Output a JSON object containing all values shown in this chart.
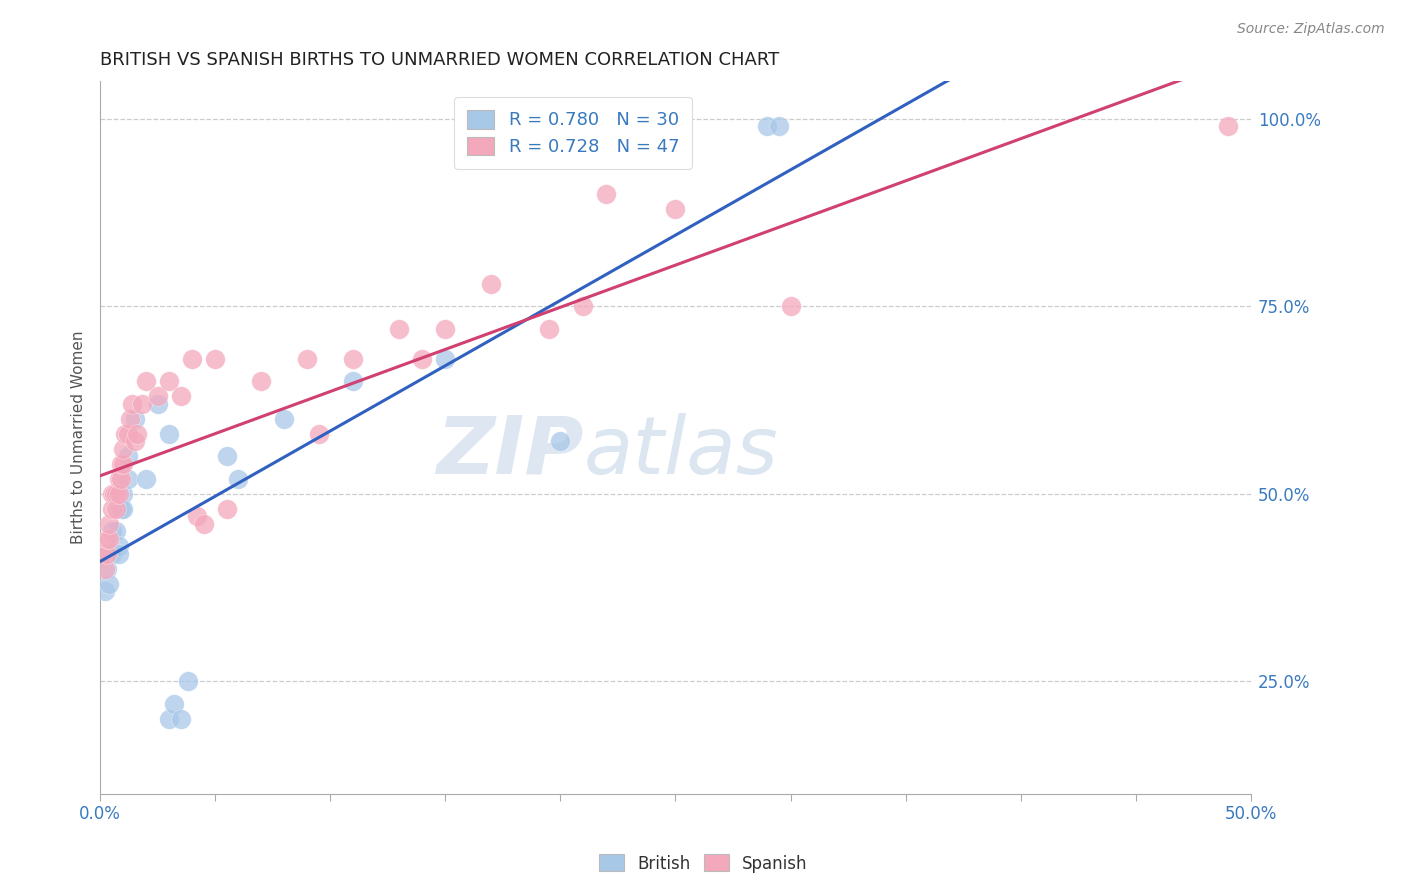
{
  "title": "BRITISH VS SPANISH BIRTHS TO UNMARRIED WOMEN CORRELATION CHART",
  "source": "Source: ZipAtlas.com",
  "ylabel": "Births to Unmarried Women",
  "british_R": 0.78,
  "british_N": 30,
  "spanish_R": 0.728,
  "spanish_N": 47,
  "british_color": "#a8c8e8",
  "spanish_color": "#f4a8bc",
  "british_line_color": "#3060c0",
  "spanish_line_color": "#d04070",
  "watermark_zip": "ZIP",
  "watermark_atlas": "atlas",
  "xlim": [
    0.0,
    0.5
  ],
  "ylim": [
    0.1,
    1.05
  ],
  "british_dots": [
    [
      0.002,
      0.37
    ],
    [
      0.003,
      0.4
    ],
    [
      0.003,
      0.42
    ],
    [
      0.004,
      0.38
    ],
    [
      0.005,
      0.42
    ],
    [
      0.005,
      0.45
    ],
    [
      0.007,
      0.45
    ],
    [
      0.008,
      0.43
    ],
    [
      0.008,
      0.42
    ],
    [
      0.009,
      0.48
    ],
    [
      0.01,
      0.5
    ],
    [
      0.01,
      0.48
    ],
    [
      0.012,
      0.55
    ],
    [
      0.012,
      0.52
    ],
    [
      0.015,
      0.6
    ],
    [
      0.02,
      0.52
    ],
    [
      0.025,
      0.62
    ],
    [
      0.03,
      0.58
    ],
    [
      0.03,
      0.2
    ],
    [
      0.032,
      0.22
    ],
    [
      0.035,
      0.2
    ],
    [
      0.038,
      0.25
    ],
    [
      0.055,
      0.55
    ],
    [
      0.06,
      0.52
    ],
    [
      0.08,
      0.6
    ],
    [
      0.11,
      0.65
    ],
    [
      0.15,
      0.68
    ],
    [
      0.2,
      0.57
    ],
    [
      0.29,
      0.99
    ],
    [
      0.295,
      0.99
    ]
  ],
  "spanish_dots": [
    [
      0.001,
      0.42
    ],
    [
      0.002,
      0.4
    ],
    [
      0.003,
      0.42
    ],
    [
      0.003,
      0.44
    ],
    [
      0.004,
      0.44
    ],
    [
      0.004,
      0.46
    ],
    [
      0.005,
      0.5
    ],
    [
      0.005,
      0.48
    ],
    [
      0.006,
      0.5
    ],
    [
      0.007,
      0.5
    ],
    [
      0.007,
      0.48
    ],
    [
      0.008,
      0.52
    ],
    [
      0.008,
      0.5
    ],
    [
      0.009,
      0.52
    ],
    [
      0.009,
      0.54
    ],
    [
      0.01,
      0.54
    ],
    [
      0.01,
      0.56
    ],
    [
      0.011,
      0.58
    ],
    [
      0.012,
      0.58
    ],
    [
      0.013,
      0.6
    ],
    [
      0.014,
      0.62
    ],
    [
      0.015,
      0.57
    ],
    [
      0.016,
      0.58
    ],
    [
      0.018,
      0.62
    ],
    [
      0.02,
      0.65
    ],
    [
      0.025,
      0.63
    ],
    [
      0.03,
      0.65
    ],
    [
      0.035,
      0.63
    ],
    [
      0.04,
      0.68
    ],
    [
      0.042,
      0.47
    ],
    [
      0.045,
      0.46
    ],
    [
      0.05,
      0.68
    ],
    [
      0.055,
      0.48
    ],
    [
      0.07,
      0.65
    ],
    [
      0.09,
      0.68
    ],
    [
      0.095,
      0.58
    ],
    [
      0.11,
      0.68
    ],
    [
      0.13,
      0.72
    ],
    [
      0.14,
      0.68
    ],
    [
      0.15,
      0.72
    ],
    [
      0.17,
      0.78
    ],
    [
      0.195,
      0.72
    ],
    [
      0.21,
      0.75
    ],
    [
      0.22,
      0.9
    ],
    [
      0.25,
      0.88
    ],
    [
      0.3,
      0.75
    ],
    [
      0.49,
      0.99
    ]
  ]
}
